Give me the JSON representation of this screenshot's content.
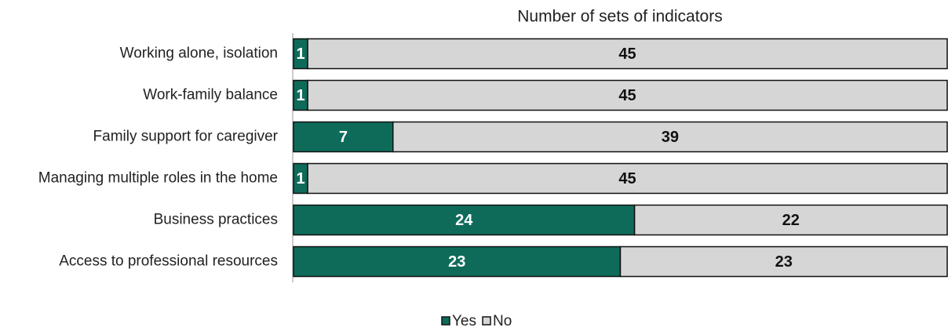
{
  "chart_data": {
    "type": "stacked_bar_horizontal",
    "title": "Number of sets of indicators",
    "categories": [
      "Working alone, isolation",
      "Work-family balance",
      "Family support for caregiver",
      "Managing multiple roles in the home",
      "Business practices",
      "Access to professional resources"
    ],
    "series": [
      {
        "name": "Yes",
        "color": "#0e6b5a",
        "values": [
          1,
          1,
          7,
          1,
          24,
          23
        ]
      },
      {
        "name": "No",
        "color": "#d6d6d6",
        "values": [
          45,
          45,
          39,
          45,
          22,
          23
        ]
      }
    ],
    "xlim": [
      0,
      46
    ],
    "legend": "bottom"
  }
}
